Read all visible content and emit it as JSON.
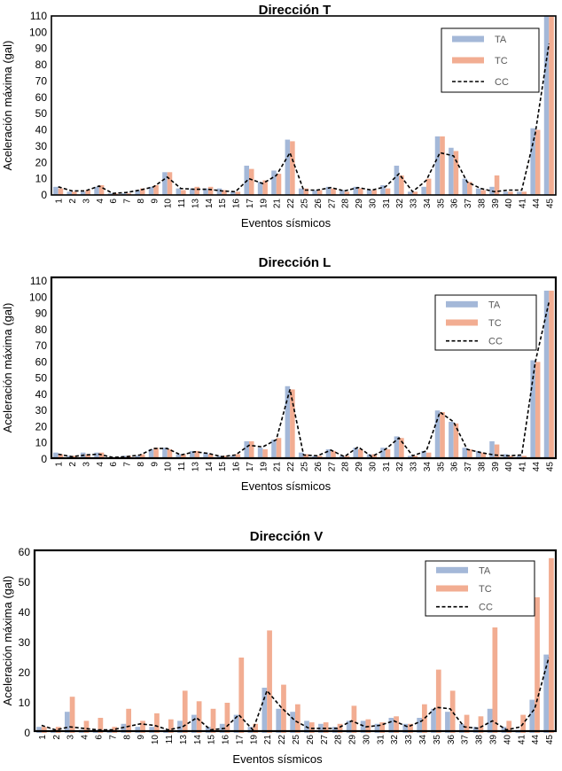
{
  "colors": {
    "TA": "#a4b8d8",
    "TC": "#f2ad92",
    "CC": "#000000"
  },
  "chart_data": [
    {
      "type": "bar",
      "title": "Dirección T",
      "xlabel": "Eventos sísmicos",
      "ylabel": "Aceleración máxima (gal)",
      "ylim": [
        0,
        110
      ],
      "yticks": [
        0,
        10,
        20,
        30,
        40,
        50,
        60,
        70,
        80,
        90,
        100,
        110
      ],
      "legend": "top-right",
      "categories": [
        "1",
        "2",
        "3",
        "4",
        "6",
        "7",
        "8",
        "9",
        "10",
        "11",
        "13",
        "14",
        "15",
        "16",
        "17",
        "19",
        "21",
        "22",
        "25",
        "26",
        "27",
        "28",
        "29",
        "30",
        "31",
        "32",
        "33",
        "34",
        "35",
        "36",
        "37",
        "38",
        "39",
        "40",
        "41",
        "44",
        "45"
      ],
      "series": [
        {
          "name": "TA",
          "kind": "bar",
          "values": [
            5,
            2,
            2,
            5,
            1,
            1,
            3,
            5,
            14,
            4,
            4,
            4,
            4,
            2,
            18,
            8,
            15,
            34,
            4,
            3,
            5,
            3,
            5,
            3,
            6,
            18,
            2,
            5,
            36,
            29,
            10,
            4,
            5,
            2,
            2,
            41,
            110
          ]
        },
        {
          "name": "TC",
          "kind": "bar",
          "values": [
            4,
            2,
            3,
            6,
            1,
            1,
            4,
            6,
            14,
            3,
            5,
            5,
            3,
            2,
            16,
            9,
            13,
            33,
            4,
            3,
            4,
            2,
            4,
            3,
            4,
            12,
            2,
            10,
            36,
            27,
            8,
            3,
            12,
            2,
            2,
            40,
            110
          ]
        },
        {
          "name": "CC",
          "kind": "line",
          "values": [
            5,
            2.5,
            2.5,
            5.5,
            1,
            1.5,
            3,
            5,
            11,
            4,
            3.5,
            3.5,
            2.5,
            2,
            10,
            7,
            12,
            26,
            3,
            3,
            4.5,
            2.5,
            4.5,
            3,
            5,
            13,
            2,
            9,
            26,
            24,
            8,
            4,
            2,
            3,
            3,
            38,
            93
          ]
        }
      ]
    },
    {
      "type": "bar",
      "title": "Dirección L",
      "xlabel": "Eventos sísmicos",
      "ylabel": "Aceleración máxima (gal)",
      "ylim": [
        0,
        110
      ],
      "yticks": [
        0,
        10,
        20,
        30,
        40,
        50,
        60,
        70,
        80,
        90,
        100,
        110
      ],
      "legend": "top-right",
      "categories": [
        "1",
        "2",
        "3",
        "4",
        "6",
        "7",
        "8",
        "9",
        "10",
        "11",
        "13",
        "14",
        "15",
        "16",
        "17",
        "19",
        "21",
        "22",
        "25",
        "26",
        "27",
        "28",
        "29",
        "30",
        "31",
        "32",
        "33",
        "34",
        "35",
        "36",
        "37",
        "38",
        "39",
        "40",
        "41",
        "44",
        "45"
      ],
      "series": [
        {
          "name": "TA",
          "kind": "bar",
          "values": [
            4,
            2,
            4,
            4,
            1,
            2,
            2,
            6,
            7,
            3,
            5,
            4,
            2,
            2,
            11,
            7,
            12,
            45,
            4,
            2,
            6,
            2,
            7,
            3,
            7,
            14,
            2,
            5,
            30,
            23,
            7,
            5,
            11,
            3,
            2,
            61,
            104
          ]
        },
        {
          "name": "TC",
          "kind": "bar",
          "values": [
            3,
            2,
            3,
            4,
            1,
            2,
            3,
            7,
            6,
            3,
            5,
            3,
            2,
            3,
            11,
            6,
            13,
            43,
            3,
            2,
            5,
            2,
            6,
            3,
            6,
            13,
            2,
            4,
            29,
            22,
            6,
            4,
            9,
            2,
            2,
            60,
            104
          ]
        },
        {
          "name": "CC",
          "kind": "line",
          "values": [
            3,
            1.5,
            2.5,
            3,
            1,
            1.5,
            2.5,
            6.5,
            6.5,
            2.5,
            4.5,
            3.5,
            1.5,
            2.5,
            8.5,
            7.5,
            12,
            43,
            2.5,
            2,
            5.5,
            1.5,
            7.5,
            1.5,
            6,
            13,
            2,
            5,
            29,
            23,
            6,
            4,
            2.5,
            2,
            2.5,
            60,
            97
          ]
        }
      ]
    },
    {
      "type": "bar",
      "title": "Dirección V",
      "xlabel": "Eventos sísmicos",
      "ylabel": "Aceleración máxima (gal)",
      "ylim": [
        0,
        60
      ],
      "yticks": [
        0,
        10,
        20,
        30,
        40,
        50,
        60
      ],
      "legend": "top-right",
      "categories": [
        "1",
        "2",
        "3",
        "4",
        "6",
        "7",
        "8",
        "9",
        "10",
        "11",
        "13",
        "14",
        "15",
        "16",
        "17",
        "19",
        "21",
        "22",
        "25",
        "26",
        "27",
        "28",
        "29",
        "30",
        "31",
        "32",
        "33",
        "34",
        "35",
        "36",
        "37",
        "38",
        "39",
        "40",
        "41",
        "44",
        "45"
      ],
      "series": [
        {
          "name": "TA",
          "kind": "bar",
          "values": [
            2,
            1,
            7,
            1,
            1,
            1,
            3,
            2,
            2,
            1,
            4,
            6,
            2,
            3,
            6,
            2,
            15,
            8,
            7,
            4,
            3,
            2,
            4,
            4,
            3,
            5,
            3,
            5,
            8,
            7,
            3,
            2,
            8,
            2,
            1,
            11,
            26
          ]
        },
        {
          "name": "TC",
          "kind": "bar",
          "values": [
            2,
            2,
            12,
            4,
            5,
            2,
            8,
            4,
            6.5,
            4.5,
            14,
            10.5,
            8,
            10,
            25,
            3,
            34,
            16,
            9.5,
            3.5,
            3.5,
            3,
            9,
            4.5,
            3.5,
            5.5,
            3,
            9.5,
            21,
            14,
            6,
            5.5,
            35,
            4,
            6,
            45,
            58
          ]
        },
        {
          "name": "CC",
          "kind": "line",
          "values": [
            2.5,
            1,
            2,
            1.5,
            1,
            1,
            2,
            3,
            2.5,
            1,
            2,
            5,
            1,
            1.5,
            6,
            1,
            14,
            8.5,
            4,
            1.5,
            1.5,
            1.5,
            4,
            2,
            2.5,
            4,
            2,
            4,
            8.5,
            8,
            2,
            1.5,
            4,
            1,
            2,
            8,
            25
          ]
        }
      ]
    }
  ]
}
